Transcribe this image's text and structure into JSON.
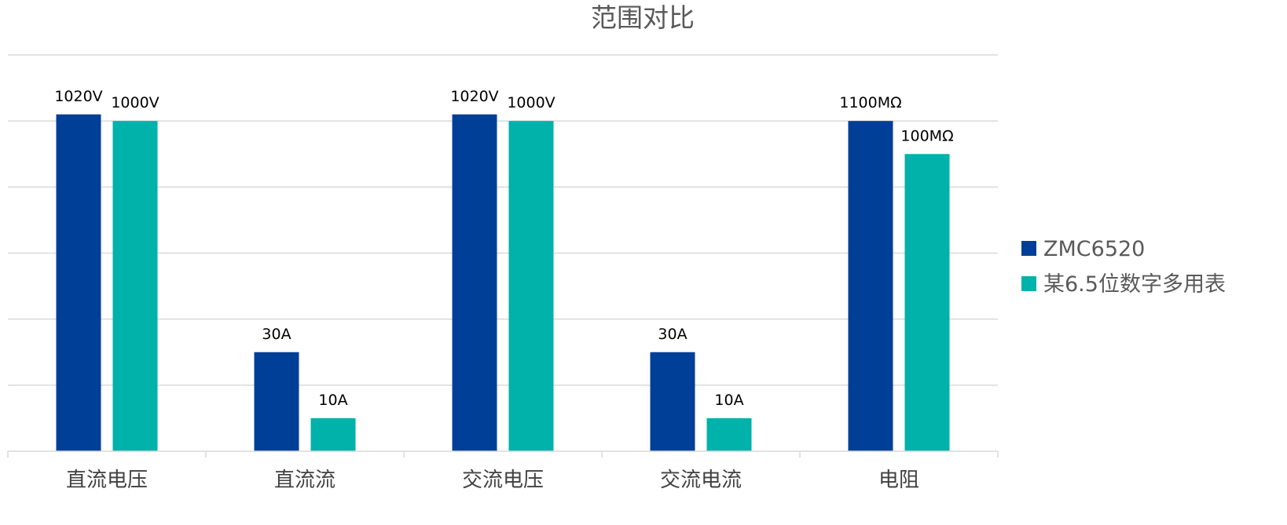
{
  "chart_data": {
    "type": "bar",
    "title": "范围对比",
    "categories": [
      "直流电压",
      "直流流",
      "交流电压",
      "交流电流",
      "电阻"
    ],
    "series": [
      {
        "name": "ZMC6520",
        "color": "#003f98",
        "values": [
          1020,
          30,
          1020,
          30,
          1100
        ],
        "labels": [
          "1020V",
          "30A",
          "1020V",
          "30A",
          "1100MΩ"
        ]
      },
      {
        "name": "某6.5位数字多用表",
        "color": "#00b2a9",
        "values": [
          1000,
          10,
          1000,
          10,
          100
        ],
        "labels": [
          "1000V",
          "10A",
          "1000V",
          "10A",
          "100MΩ"
        ]
      }
    ],
    "bar_heights_relative": [
      [
        1.02,
        0.3,
        1.02,
        0.3,
        1.0
      ],
      [
        1.0,
        0.1,
        1.0,
        0.1,
        0.9
      ]
    ],
    "ylim": [
      0,
      1.2
    ],
    "gridlines": 6,
    "grid": true,
    "legend_position": "right"
  }
}
